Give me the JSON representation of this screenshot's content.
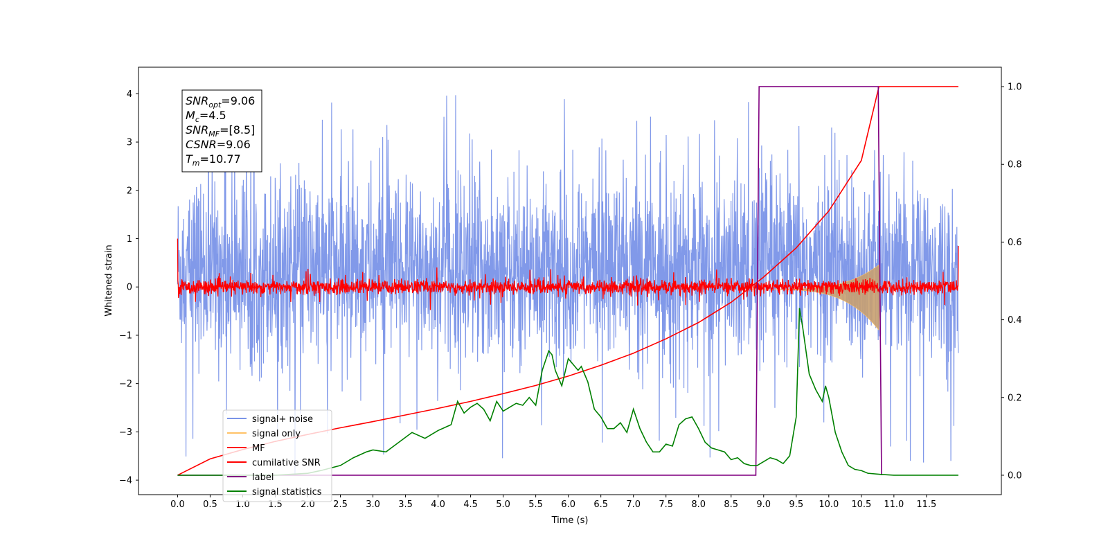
{
  "chart_data": {
    "type": "line",
    "xlabel": "Time (s)",
    "ylabel": "Whitened strain",
    "xlim": [
      -0.6,
      12.65
    ],
    "ylim": [
      -4.3,
      4.55
    ],
    "y2lim": [
      -0.05,
      1.05
    ],
    "xticks": [
      "0.0",
      "0.5",
      "1.0",
      "1.5",
      "2.0",
      "2.5",
      "3.0",
      "3.5",
      "4.0",
      "4.5",
      "5.0",
      "5.5",
      "6.0",
      "6.5",
      "7.0",
      "7.5",
      "8.0",
      "8.5",
      "9.0",
      "9.5",
      "10.0",
      "10.5",
      "11.0",
      "11.5"
    ],
    "yticks": [
      "4",
      "3",
      "2",
      "1",
      "0",
      "−1",
      "−2",
      "−3",
      "−4"
    ],
    "y2ticks": [
      "1.0",
      "0.8",
      "0.6",
      "0.4",
      "0.2",
      "0.0"
    ],
    "annotation": {
      "lines": [
        {
          "sym": "SNR",
          "sub": "opt",
          "val": "=9.06"
        },
        {
          "sym": "M",
          "sub": "c",
          "val": "=4.5"
        },
        {
          "sym": "SNR",
          "sub": "MF",
          "val": "=[8.5]"
        },
        {
          "sym": "CSNR",
          "sub": "",
          "val": "=9.06"
        },
        {
          "sym": "T",
          "sub": "m",
          "val": "=10.77"
        }
      ]
    },
    "legend": {
      "placement": "lower-left",
      "entries": [
        {
          "label": "signal+ noise",
          "color": "#7a94e8"
        },
        {
          "label": "signal only",
          "color": "#ffc266"
        },
        {
          "label": "MF",
          "color": "#ff0000"
        },
        {
          "label": "cumilative SNR",
          "color": "#ff0000"
        },
        {
          "label": "label",
          "color": "#800080"
        },
        {
          "label": "signal statistics",
          "color": "#008000"
        }
      ]
    },
    "series": [
      {
        "name": "signal+ noise",
        "axis": "left",
        "kind": "noise",
        "x_range": [
          0.0,
          11.99
        ],
        "typical_range": [
          -1.6,
          2.4
        ],
        "extremes": [
          -3.9,
          4.2
        ]
      },
      {
        "name": "signal only",
        "axis": "left",
        "kind": "chirp",
        "x_range": [
          8.8,
          10.8
        ],
        "amplitude_end": 0.9
      },
      {
        "name": "MF",
        "axis": "left",
        "kind": "noise",
        "x_range": [
          0.0,
          11.99
        ],
        "typical_range": [
          -0.15,
          0.15
        ],
        "edge_values": [
          1.0,
          0.85
        ]
      },
      {
        "name": "cumilative SNR",
        "axis": "right",
        "x": [
          0.0,
          0.5,
          1.0,
          1.5,
          2.0,
          2.5,
          3.0,
          3.5,
          4.0,
          4.5,
          5.0,
          5.5,
          6.0,
          6.5,
          7.0,
          7.5,
          8.0,
          8.5,
          9.0,
          9.5,
          10.0,
          10.5,
          10.77,
          10.8,
          11.99
        ],
        "values": [
          0.0,
          0.042,
          0.066,
          0.087,
          0.105,
          0.122,
          0.138,
          0.155,
          0.172,
          0.19,
          0.21,
          0.231,
          0.255,
          0.283,
          0.314,
          0.351,
          0.393,
          0.445,
          0.51,
          0.585,
          0.68,
          0.81,
          1.0,
          1.0,
          1.0
        ]
      },
      {
        "name": "label",
        "axis": "right",
        "x": [
          0.0,
          8.88,
          8.93,
          10.76,
          10.81
        ],
        "values": [
          0.0,
          0.0,
          1.0,
          1.0,
          0.0
        ]
      },
      {
        "name": "signal statistics",
        "axis": "right",
        "x": [
          0.0,
          1.5,
          2.0,
          2.2,
          2.5,
          2.7,
          2.9,
          3.0,
          3.2,
          3.4,
          3.6,
          3.8,
          4.0,
          4.2,
          4.3,
          4.4,
          4.5,
          4.6,
          4.7,
          4.8,
          4.9,
          5.0,
          5.1,
          5.2,
          5.3,
          5.4,
          5.5,
          5.6,
          5.7,
          5.75,
          5.8,
          5.9,
          6.0,
          6.1,
          6.15,
          6.2,
          6.3,
          6.4,
          6.5,
          6.6,
          6.7,
          6.8,
          6.9,
          7.0,
          7.1,
          7.2,
          7.3,
          7.4,
          7.5,
          7.6,
          7.7,
          7.8,
          7.9,
          8.0,
          8.1,
          8.2,
          8.3,
          8.4,
          8.5,
          8.6,
          8.7,
          8.8,
          8.9,
          9.0,
          9.1,
          9.2,
          9.3,
          9.4,
          9.5,
          9.55,
          9.6,
          9.7,
          9.8,
          9.9,
          9.95,
          10.0,
          10.1,
          10.2,
          10.3,
          10.4,
          10.5,
          10.6,
          10.8,
          11.0,
          11.99
        ],
        "values": [
          0.0,
          0.0,
          0.005,
          0.012,
          0.025,
          0.045,
          0.06,
          0.065,
          0.06,
          0.085,
          0.11,
          0.095,
          0.115,
          0.13,
          0.19,
          0.16,
          0.175,
          0.185,
          0.17,
          0.14,
          0.19,
          0.165,
          0.175,
          0.185,
          0.18,
          0.2,
          0.18,
          0.27,
          0.32,
          0.31,
          0.27,
          0.23,
          0.3,
          0.28,
          0.27,
          0.28,
          0.24,
          0.17,
          0.15,
          0.12,
          0.12,
          0.135,
          0.11,
          0.17,
          0.12,
          0.085,
          0.06,
          0.06,
          0.08,
          0.075,
          0.13,
          0.145,
          0.15,
          0.12,
          0.085,
          0.07,
          0.065,
          0.06,
          0.04,
          0.045,
          0.03,
          0.025,
          0.025,
          0.035,
          0.045,
          0.04,
          0.03,
          0.05,
          0.15,
          0.43,
          0.38,
          0.26,
          0.22,
          0.19,
          0.23,
          0.2,
          0.11,
          0.06,
          0.025,
          0.015,
          0.012,
          0.005,
          0.002,
          0.0,
          0.0
        ]
      }
    ]
  }
}
